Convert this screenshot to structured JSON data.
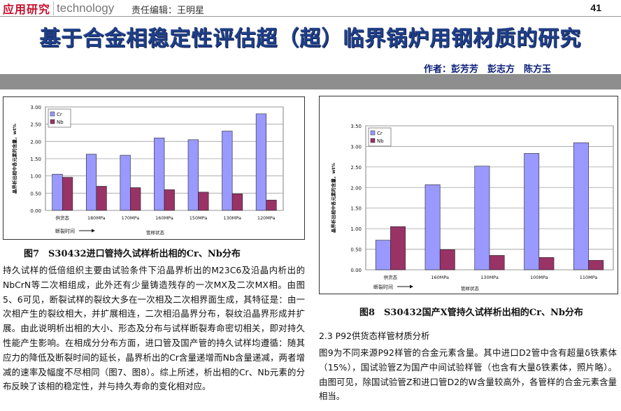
{
  "header": {
    "brand_cn": "应用研究",
    "brand_en": "technology",
    "editor": "责任编辑：王明星",
    "page_number": "41"
  },
  "article": {
    "title": "基于合金相稳定性评估超（超）临界锅炉用钢材质的研究",
    "authors": "作者：彭芳芳　彭志方　陈方玉"
  },
  "figure7": {
    "caption": "图7　S30432进口管持久试样析出相的Cr、Nb分布"
  },
  "figure8": {
    "caption": "图8　S30432国产X管持久试样析出相的Cr、Nb分布"
  },
  "body": {
    "left_paragraph": "持久试样的低倍组织主要由试验条件下沿晶界析出的M23C6及沿晶内析出的NbCrN等二次相组成，此外还有少量铸造残存的一次MX及二次MX相。由图5、6可见，断裂试样的裂纹大多在一次相及二次相界面生成，其特征是：由一次相产生的裂纹相大，并扩展相连，二次相沿晶界分布，裂纹沿晶界形成并扩展。由此说明析出相的大小、形态及分布与试样断裂寿命密切相关，即对持久性能产生影响。在相成分分布方面，进口管及国产管的持久试样均遵循：随其应力的降低及断裂时间的延长，晶界析出的Cr含量递增而Nb含量递减，两者增减的速率及幅度不尽相同（图7、图8）。综上所述，析出相的Cr、Nb元素的分布反映了该相的稳定性，并与持久寿命的变化相对应。",
    "section_heading": "2.3 P92供货态样管材质分析",
    "right_paragraph": "图9为不同来源P92样管的合金元素含量。其中进口D2管中含有超量δ铁素体（15%），国试验管Z为国产中间试验样管（也含有大量δ铁素体，照片略）。由图可见，除国试验管Z和进口管D2的W含量较高外，各管样的合金元素含量相当。"
  },
  "chart_data": [
    {
      "type": "bar",
      "categories": [
        "供货态",
        "180MPa",
        "170MPa",
        "160MPa",
        "150MPa",
        "130MPa",
        "120MPa"
      ],
      "series": [
        {
          "name": "Cr",
          "values": [
            1.05,
            1.63,
            1.6,
            2.1,
            2.05,
            2.3,
            2.8
          ],
          "color": "#9999ff"
        },
        {
          "name": "Nb",
          "values": [
            0.96,
            0.7,
            0.66,
            0.6,
            0.53,
            0.48,
            0.3
          ],
          "color": "#993366"
        }
      ],
      "ylim": [
        0,
        3.0
      ],
      "yticks": [
        "0.00",
        "0.50",
        "1.00",
        "1.50",
        "2.00",
        "2.50",
        "3.00"
      ],
      "ylabel": "晶界析出相中各元素的含量，wt%",
      "xlabel": "断裂时间",
      "x_group_label": "管样状态",
      "grid": true,
      "legend": "top-left"
    },
    {
      "type": "bar",
      "categories": [
        "供货态",
        "160MPa",
        "130MPa",
        "100MPa",
        "110MPa"
      ],
      "series": [
        {
          "name": "Cr",
          "values": [
            0.72,
            2.07,
            2.52,
            2.83,
            3.09
          ],
          "color": "#9999ff"
        },
        {
          "name": "Nb",
          "values": [
            1.05,
            0.49,
            0.35,
            0.3,
            0.23
          ],
          "color": "#993366"
        }
      ],
      "ylim": [
        0,
        3.5
      ],
      "yticks": [
        "0.00",
        "0.50",
        "1.00",
        "1.50",
        "2.00",
        "2.50",
        "3.00",
        "3.50"
      ],
      "ylabel": "晶界析出相中各元素的含量，wt%",
      "xlabel": "断裂时间",
      "x_group_label": "管样状态",
      "grid": true,
      "legend": "top-left"
    }
  ]
}
